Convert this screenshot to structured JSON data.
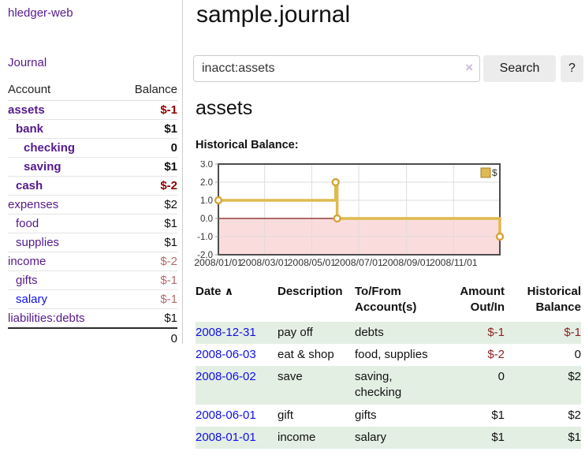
{
  "sidebar": {
    "app_title": "hledger-web",
    "nav_journal": "Journal",
    "accounts": {
      "header_account": "Account",
      "header_balance": "Balance",
      "rows": [
        {
          "name": "assets",
          "depth": 1,
          "bold": true,
          "balance": "$-1",
          "balance_negative": true,
          "link_color": "purple"
        },
        {
          "name": "bank",
          "depth": 2,
          "bold": true,
          "balance": "$1",
          "balance_negative": false,
          "link_color": "purple"
        },
        {
          "name": "checking",
          "depth": 3,
          "bold": true,
          "balance": "0",
          "balance_negative": false,
          "link_color": "purple"
        },
        {
          "name": "saving",
          "depth": 3,
          "bold": true,
          "balance": "$1",
          "balance_negative": false,
          "link_color": "purple"
        },
        {
          "name": "cash",
          "depth": 2,
          "bold": true,
          "balance": "$-2",
          "balance_negative": true,
          "link_color": "purple"
        },
        {
          "name": "expenses",
          "depth": 1,
          "bold": false,
          "balance": "$2",
          "balance_negative": false,
          "link_color": "purple"
        },
        {
          "name": "food",
          "depth": 2,
          "bold": false,
          "balance": "$1",
          "balance_negative": false,
          "link_color": "purple"
        },
        {
          "name": "supplies",
          "depth": 2,
          "bold": false,
          "balance": "$1",
          "balance_negative": false,
          "link_color": "purple"
        },
        {
          "name": "income",
          "depth": 1,
          "bold": false,
          "balance": "$-2",
          "balance_negative": true,
          "link_color": "purple"
        },
        {
          "name": "gifts",
          "depth": 2,
          "bold": false,
          "balance": "$-1",
          "balance_negative": true,
          "link_color": "purple"
        },
        {
          "name": "salary",
          "depth": 2,
          "bold": false,
          "balance": "$-1",
          "balance_negative": true,
          "link_color": "blue"
        },
        {
          "name": "liabilities:debts",
          "depth": 1,
          "bold": false,
          "balance": "$1",
          "balance_negative": false,
          "link_color": "purple"
        }
      ],
      "total": "0"
    }
  },
  "main": {
    "title": "sample.journal",
    "search": {
      "value": "inacct:assets",
      "clear_icon": "×",
      "button_label": "Search",
      "help_label": "?"
    },
    "account_heading": "assets",
    "chart_label": "Historical Balance:",
    "register": {
      "header": {
        "date": "Date",
        "sort_arrow": "∧",
        "description": "Description",
        "tofrom_line1": "To/From",
        "tofrom_line2": "Account(s)",
        "amount_line1": "Amount",
        "amount_line2": "Out/In",
        "balance_line1": "Historical",
        "balance_line2": "Balance"
      },
      "rows": [
        {
          "date": "2008-12-31",
          "description": "pay off",
          "accounts": "debts",
          "amount": "$-1",
          "amount_negative": true,
          "balance": "$-1",
          "balance_negative": true,
          "shaded": true
        },
        {
          "date": "2008-06-03",
          "description": "eat & shop",
          "accounts": "food, supplies",
          "amount": "$-2",
          "amount_negative": true,
          "balance": "0",
          "balance_negative": false,
          "shaded": false
        },
        {
          "date": "2008-06-02",
          "description": "save",
          "accounts": "saving, checking",
          "amount": "0",
          "amount_negative": false,
          "balance": "$2",
          "balance_negative": false,
          "shaded": true
        },
        {
          "date": "2008-06-01",
          "description": "gift",
          "accounts": "gifts",
          "amount": "$1",
          "amount_negative": false,
          "balance": "$2",
          "balance_negative": false,
          "shaded": false
        },
        {
          "date": "2008-01-01",
          "description": "income",
          "accounts": "salary",
          "amount": "$1",
          "amount_negative": false,
          "balance": "$1",
          "balance_negative": false,
          "shaded": true
        }
      ]
    }
  },
  "chart_data": {
    "type": "line",
    "step": true,
    "title": "Historical Balance:",
    "series": [
      {
        "name": "$",
        "points": [
          {
            "date": "2008-01-01",
            "value": 1
          },
          {
            "date": "2008-06-01",
            "value": 2
          },
          {
            "date": "2008-06-03",
            "value": 0
          },
          {
            "date": "2008-12-31",
            "value": -1
          }
        ]
      }
    ],
    "x_range": [
      "2008-01-01",
      "2008-12-31"
    ],
    "ylim": [
      -2,
      3
    ],
    "yticks": [
      3,
      2,
      1,
      0,
      -1,
      -2
    ],
    "xtick_labels": [
      "2008/01/01",
      "2008/03/01",
      "2008/05/01",
      "2008/07/01",
      "2008/09/01",
      "2008/11/01"
    ],
    "grid": true,
    "legend_position": "top-right",
    "marker": "open-circle"
  },
  "colors": {
    "visited_link_purple": "#551a8b",
    "unvisited_link_blue": "#0f0fe8",
    "negative_bold_red": "#8b0000",
    "negative_soft_red": "#b36a6a",
    "negative_table_red": "#8b1f1f",
    "row_shade_green": "#e4efe4",
    "chart_line_gold": "#e0b94f",
    "chart_marker_ring": "#d3a436",
    "chart_negative_fill": "#fbdcdc",
    "chart_zero_line": "#7c1a1a",
    "chart_border": "#4d4d4d",
    "chart_grid": "#dddddd",
    "button_gray": "#ececec"
  }
}
